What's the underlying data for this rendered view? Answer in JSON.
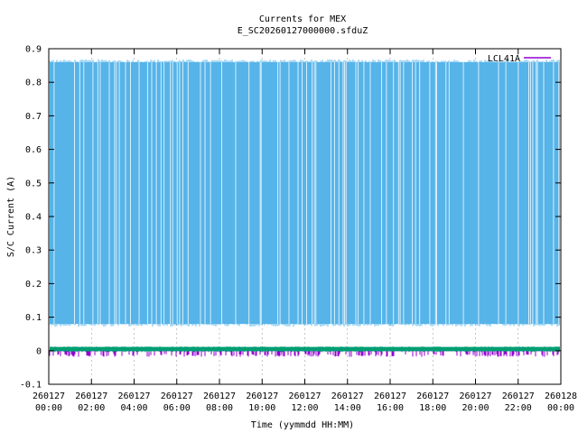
{
  "chart_data": {
    "type": "line",
    "title": "Currents for MEX",
    "subtitle": "E_SC20260127000000.sfduZ",
    "xlabel": "Time (yymmdd HH:MM)",
    "ylabel": "S/C Current (A)",
    "ylim": [
      -0.1,
      0.9
    ],
    "y_ticks": [
      "-0.1",
      "0",
      "0.1",
      "0.2",
      "0.3",
      "0.4",
      "0.5",
      "0.6",
      "0.7",
      "0.8",
      "0.9"
    ],
    "x_ticks": [
      {
        "date": "260127",
        "time": "00:00"
      },
      {
        "date": "260127",
        "time": "02:00"
      },
      {
        "date": "260127",
        "time": "04:00"
      },
      {
        "date": "260127",
        "time": "06:00"
      },
      {
        "date": "260127",
        "time": "08:00"
      },
      {
        "date": "260127",
        "time": "10:00"
      },
      {
        "date": "260127",
        "time": "12:00"
      },
      {
        "date": "260127",
        "time": "14:00"
      },
      {
        "date": "260127",
        "time": "16:00"
      },
      {
        "date": "260127",
        "time": "18:00"
      },
      {
        "date": "260127",
        "time": "20:00"
      },
      {
        "date": "260127",
        "time": "22:00"
      },
      {
        "date": "260128",
        "time": "00:00"
      }
    ],
    "xlim": [
      "260127 00:00",
      "260128 00:00"
    ],
    "grid": true,
    "legend_position": "top-right",
    "series": [
      {
        "name": "LCL41A",
        "color": "#9400d3",
        "style": "spiky, between 0.0 and -0.01",
        "low": -0.01,
        "high": 0.0
      },
      {
        "name": "",
        "color": "#56b4e9",
        "style": "rapid toggling between low and high level",
        "low": 0.08,
        "high": 0.86
      },
      {
        "name": "",
        "color": "#009e73",
        "style": "near-constant band",
        "low": 0.0,
        "high": 0.01
      }
    ]
  }
}
